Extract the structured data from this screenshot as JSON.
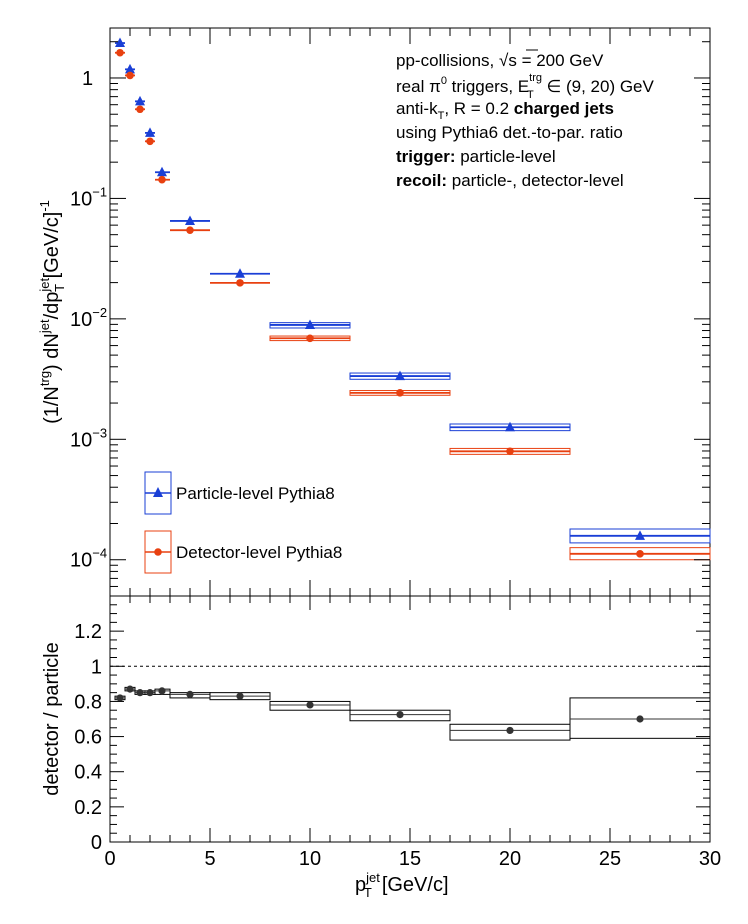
{
  "chart_data": [
    {
      "type": "scatter",
      "xlabel_main": "p",
      "xlabel_sup": "jet",
      "xlabel_sub": "T",
      "xlabel_unit": "[GeV/c]",
      "ylabel_pieces": [
        "(1/N",
        "trg",
        ") dN",
        "jet",
        "/dp",
        "jet",
        "T",
        " [GeV/c]",
        "-1"
      ],
      "xlim": [
        0,
        30
      ],
      "ylim": [
        5e-05,
        2.6
      ],
      "yscale": "log",
      "x_ticks": [
        "0",
        "5",
        "10",
        "15",
        "20",
        "25",
        "30"
      ],
      "y_tick_labels": [
        {
          "value": 1,
          "base": "1",
          "exp": ""
        },
        {
          "value": 0.1,
          "base": "10",
          "exp": "−1"
        },
        {
          "value": 0.01,
          "base": "10",
          "exp": "−2"
        },
        {
          "value": 0.001,
          "base": "10",
          "exp": "−3"
        },
        {
          "value": 0.0001,
          "base": "10",
          "exp": "−4"
        }
      ],
      "annotations": {
        "line1_a": "pp-collisions, ",
        "line1_sqrt": "√s",
        "line1_b": " = 200 GeV",
        "line2_a": "real π",
        "line2_sup0": "0",
        "line2_b": " triggers, E",
        "line2_sup": "trg",
        "line2_sub": "T",
        "line2_c": " ∈ (9, 20) GeV",
        "line3_a": "anti-k",
        "line3_sub": "T",
        "line3_b": ", R = 0.2 ",
        "line3_bold": "charged jets",
        "line4": "using Pythia6 det.-to-par. ratio",
        "line5_bold": "trigger:",
        "line5_rest": " particle-level",
        "line6_bold": "recoil:",
        "line6_rest": " particle-, detector-level"
      },
      "legend": [
        {
          "label": "Particle-level Pythia8",
          "color": "#1a3fd6",
          "marker": "triangle"
        },
        {
          "label": "Detector-level Pythia8",
          "color": "#e84010",
          "marker": "circle"
        }
      ],
      "series": [
        {
          "name": "Particle-level Pythia8",
          "color": "#1a3fd6",
          "points": [
            {
              "x": 0.5,
              "xlo": 0.25,
              "xhi": 0.75,
              "y": 1.95,
              "ylo": 1.92,
              "yhi": 1.98
            },
            {
              "x": 1.0,
              "xlo": 0.75,
              "xhi": 1.25,
              "y": 1.18,
              "ylo": 1.16,
              "yhi": 1.2
            },
            {
              "x": 1.5,
              "xlo": 1.25,
              "xhi": 1.75,
              "y": 0.64,
              "ylo": 0.63,
              "yhi": 0.65
            },
            {
              "x": 2.0,
              "xlo": 1.75,
              "xhi": 2.25,
              "y": 0.35,
              "ylo": 0.345,
              "yhi": 0.355
            },
            {
              "x": 2.6,
              "xlo": 2.25,
              "xhi": 3.0,
              "y": 0.165,
              "ylo": 0.162,
              "yhi": 0.168
            },
            {
              "x": 4.0,
              "xlo": 3.0,
              "xhi": 5.0,
              "y": 0.065,
              "ylo": 0.064,
              "yhi": 0.066
            },
            {
              "x": 6.5,
              "xlo": 5.0,
              "xhi": 8.0,
              "y": 0.0237,
              "ylo": 0.0234,
              "yhi": 0.024
            },
            {
              "x": 10.0,
              "xlo": 8.0,
              "xhi": 12.0,
              "y": 0.0089,
              "ylo": 0.0084,
              "yhi": 0.0093
            },
            {
              "x": 14.5,
              "xlo": 12.0,
              "xhi": 17.0,
              "y": 0.00335,
              "ylo": 0.00315,
              "yhi": 0.00355
            },
            {
              "x": 20.0,
              "xlo": 17.0,
              "xhi": 23.0,
              "y": 0.00126,
              "ylo": 0.00118,
              "yhi": 0.00134
            },
            {
              "x": 26.5,
              "xlo": 23.0,
              "xhi": 30.0,
              "y": 0.000158,
              "ylo": 0.000138,
              "yhi": 0.00018
            }
          ]
        },
        {
          "name": "Detector-level Pythia8",
          "color": "#e84010",
          "points": [
            {
              "x": 0.5,
              "xlo": 0.25,
              "xhi": 0.75,
              "y": 1.62,
              "ylo": 1.6,
              "yhi": 1.64
            },
            {
              "x": 1.0,
              "xlo": 0.75,
              "xhi": 1.25,
              "y": 1.05,
              "ylo": 1.04,
              "yhi": 1.06
            },
            {
              "x": 1.5,
              "xlo": 1.25,
              "xhi": 1.75,
              "y": 0.55,
              "ylo": 0.545,
              "yhi": 0.555
            },
            {
              "x": 2.0,
              "xlo": 1.75,
              "xhi": 2.25,
              "y": 0.298,
              "ylo": 0.295,
              "yhi": 0.301
            },
            {
              "x": 2.6,
              "xlo": 2.25,
              "xhi": 3.0,
              "y": 0.143,
              "ylo": 0.141,
              "yhi": 0.145
            },
            {
              "x": 4.0,
              "xlo": 3.0,
              "xhi": 5.0,
              "y": 0.0545,
              "ylo": 0.054,
              "yhi": 0.055
            },
            {
              "x": 6.5,
              "xlo": 5.0,
              "xhi": 8.0,
              "y": 0.0199,
              "ylo": 0.0197,
              "yhi": 0.0201
            },
            {
              "x": 10.0,
              "xlo": 8.0,
              "xhi": 12.0,
              "y": 0.0069,
              "ylo": 0.0066,
              "yhi": 0.0072
            },
            {
              "x": 14.5,
              "xlo": 12.0,
              "xhi": 17.0,
              "y": 0.00243,
              "ylo": 0.00232,
              "yhi": 0.00254
            },
            {
              "x": 20.0,
              "xlo": 17.0,
              "xhi": 23.0,
              "y": 0.000795,
              "ylo": 0.00075,
              "yhi": 0.00084
            },
            {
              "x": 26.5,
              "xlo": 23.0,
              "xhi": 30.0,
              "y": 0.000112,
              "ylo": 0.0001,
              "yhi": 0.000126
            }
          ]
        }
      ]
    },
    {
      "type": "scatter",
      "ylabel": "detector / particle",
      "xlim": [
        0,
        30
      ],
      "ylim": [
        0,
        1.4
      ],
      "x_ticks": [
        "0",
        "5",
        "10",
        "15",
        "20",
        "25",
        "30"
      ],
      "y_ticks": [
        "0",
        "0.2",
        "0.4",
        "0.6",
        "0.8",
        "1",
        "1.2"
      ],
      "reference_line": 1,
      "color": "#333333",
      "points": [
        {
          "x": 0.5,
          "xlo": 0.25,
          "xhi": 0.75,
          "y": 0.82,
          "ylo": 0.81,
          "yhi": 0.83
        },
        {
          "x": 1.0,
          "xlo": 0.75,
          "xhi": 1.25,
          "y": 0.87,
          "ylo": 0.86,
          "yhi": 0.88
        },
        {
          "x": 1.5,
          "xlo": 1.25,
          "xhi": 1.75,
          "y": 0.85,
          "ylo": 0.84,
          "yhi": 0.86
        },
        {
          "x": 2.0,
          "xlo": 1.75,
          "xhi": 2.25,
          "y": 0.85,
          "ylo": 0.84,
          "yhi": 0.86
        },
        {
          "x": 2.6,
          "xlo": 2.25,
          "xhi": 3.0,
          "y": 0.86,
          "ylo": 0.84,
          "yhi": 0.87
        },
        {
          "x": 4.0,
          "xlo": 3.0,
          "xhi": 5.0,
          "y": 0.84,
          "ylo": 0.82,
          "yhi": 0.85
        },
        {
          "x": 6.5,
          "xlo": 5.0,
          "xhi": 8.0,
          "y": 0.83,
          "ylo": 0.81,
          "yhi": 0.85
        },
        {
          "x": 10.0,
          "xlo": 8.0,
          "xhi": 12.0,
          "y": 0.78,
          "ylo": 0.75,
          "yhi": 0.8
        },
        {
          "x": 14.5,
          "xlo": 12.0,
          "xhi": 17.0,
          "y": 0.725,
          "ylo": 0.69,
          "yhi": 0.75
        },
        {
          "x": 20.0,
          "xlo": 17.0,
          "xhi": 23.0,
          "y": 0.635,
          "ylo": 0.58,
          "yhi": 0.67
        },
        {
          "x": 26.5,
          "xlo": 23.0,
          "xhi": 30.0,
          "y": 0.7,
          "ylo": 0.59,
          "yhi": 0.82
        }
      ]
    }
  ]
}
